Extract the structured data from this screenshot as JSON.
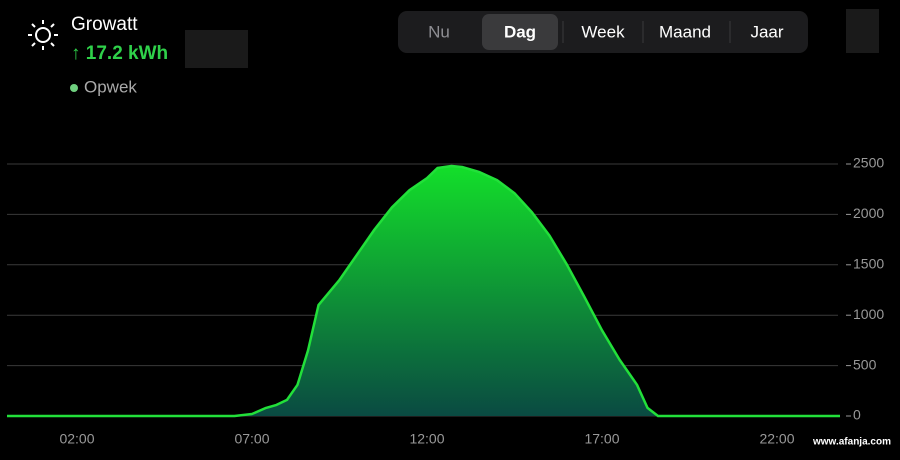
{
  "header": {
    "title": "Growatt",
    "value": "↑ 17.2 kWh",
    "legend": "Opwek"
  },
  "tabs": [
    "Nu",
    "Dag",
    "Week",
    "Maand",
    "Jaar"
  ],
  "selected_tab": 1,
  "watermark": "www.afanja.com",
  "chart_data": {
    "type": "area",
    "x": [
      0,
      6.5,
      7.0,
      7.4,
      7.7,
      8.0,
      8.3,
      8.6,
      8.9,
      9.5,
      10,
      10.5,
      11,
      11.5,
      12,
      12.3,
      12.7,
      13,
      13.5,
      14,
      14.5,
      15,
      15.5,
      16,
      16.5,
      17,
      17.5,
      18,
      18.3,
      18.6,
      23.8
    ],
    "series": [
      {
        "name": "Opwek",
        "color": "#22e03a",
        "values": [
          0,
          0,
          20,
          80,
          110,
          160,
          310,
          650,
          1100,
          1350,
          1600,
          1850,
          2070,
          2240,
          2360,
          2460,
          2480,
          2470,
          2420,
          2340,
          2210,
          2020,
          1790,
          1500,
          1180,
          850,
          560,
          310,
          80,
          0,
          0
        ]
      }
    ],
    "xlim": [
      0,
      24
    ],
    "xticks": [
      {
        "value": 2,
        "label": "02:00"
      },
      {
        "value": 7,
        "label": "07:00"
      },
      {
        "value": 12,
        "label": "12:00"
      },
      {
        "value": 17,
        "label": "17:00"
      },
      {
        "value": 22,
        "label": "22:00"
      }
    ],
    "ylim": [
      0,
      2500
    ],
    "yticks": [
      0,
      500,
      1000,
      1500,
      2000,
      2500
    ],
    "grid": true
  }
}
